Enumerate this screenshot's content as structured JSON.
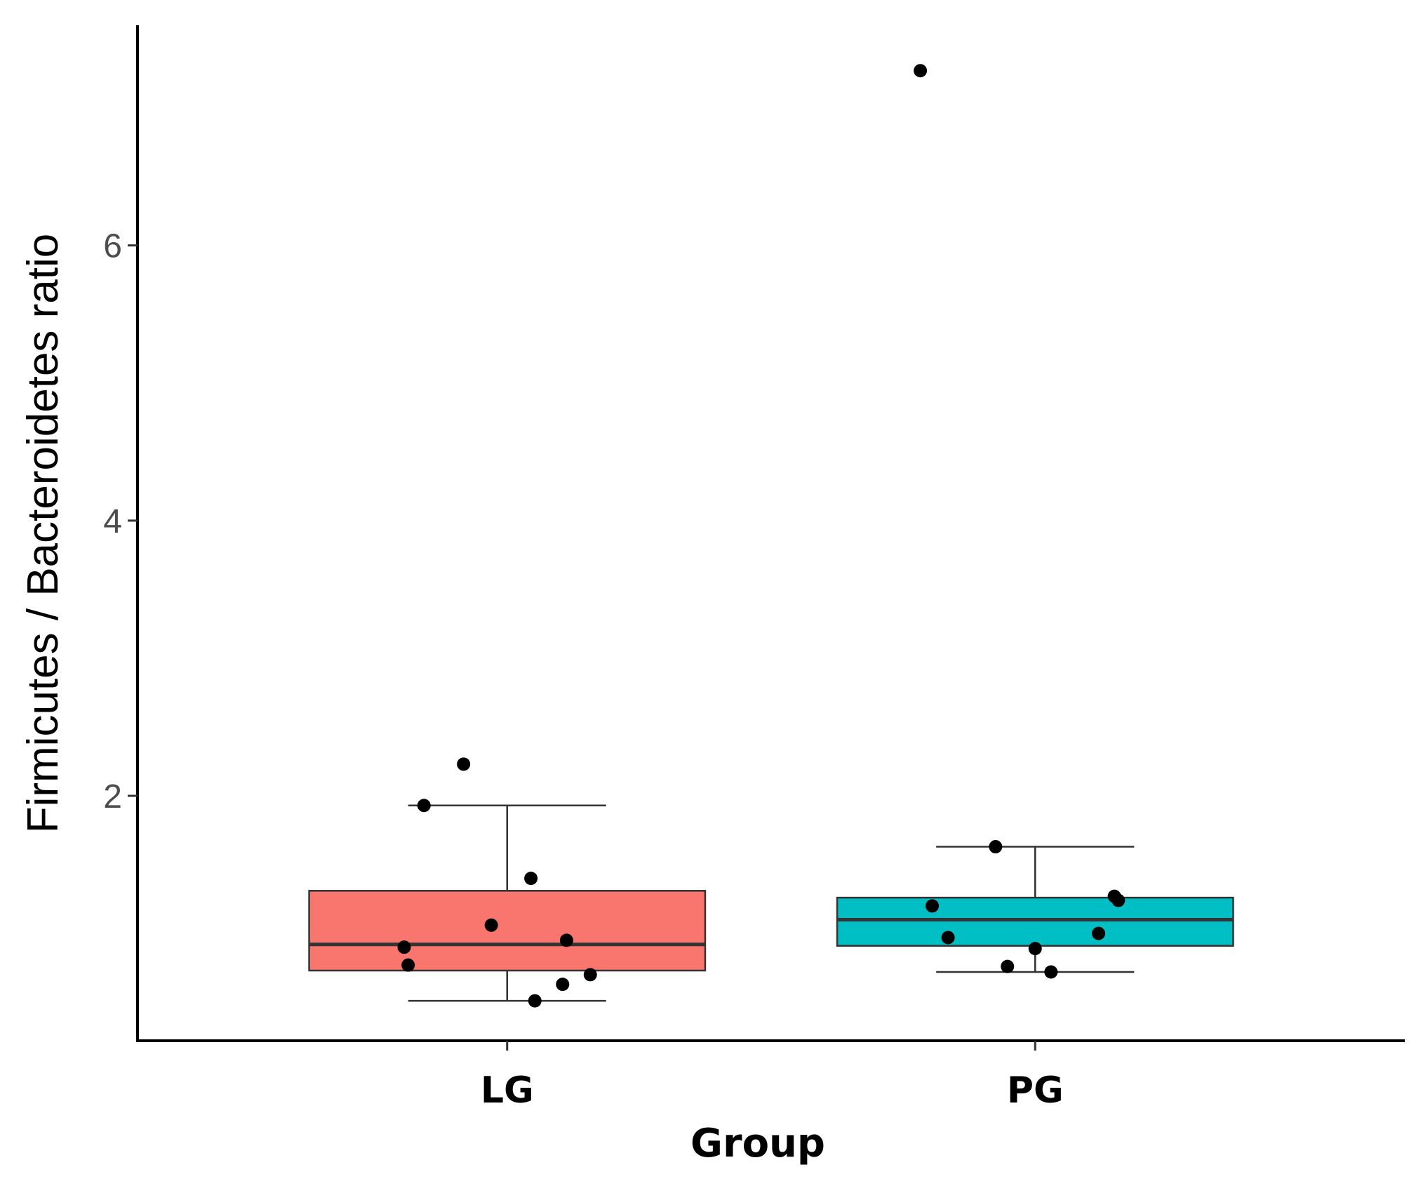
{
  "chart_data": {
    "type": "box",
    "title": "",
    "xlabel": "Group",
    "ylabel": "Firmicutes / Bacteroidetes ratio",
    "ylim": [
      0.22,
      7.6
    ],
    "yticks": [
      2,
      4,
      6
    ],
    "yticks_labels": [
      "2",
      "4",
      "6"
    ],
    "grid": false,
    "legend": "none",
    "categories": [
      "LG",
      "PG"
    ],
    "colors": {
      "LG": "#F8766D",
      "PG": "#00BFC4",
      "outline": "#333333",
      "points": "#000000",
      "axis": "#000000"
    },
    "boxes": [
      {
        "group": "LG",
        "whisker_low": 0.51,
        "q1": 0.73,
        "median": 0.92,
        "q3": 1.31,
        "whisker_high": 1.93,
        "points": [
          2.23,
          1.93,
          1.4,
          1.06,
          0.95,
          0.9,
          0.77,
          0.7,
          0.63,
          0.51
        ],
        "jitter": [
          -0.11,
          -0.21,
          0.06,
          -0.04,
          0.15,
          -0.26,
          -0.25,
          0.21,
          0.14,
          0.07
        ]
      },
      {
        "group": "PG",
        "whisker_low": 0.72,
        "q1": 0.91,
        "median": 1.1,
        "q3": 1.26,
        "whisker_high": 1.63,
        "points": [
          7.27,
          1.63,
          1.27,
          1.24,
          1.2,
          1.0,
          0.97,
          0.89,
          0.76,
          0.72
        ],
        "jitter": [
          -0.29,
          -0.1,
          0.2,
          0.21,
          -0.26,
          0.16,
          -0.22,
          0.0,
          -0.07,
          0.04
        ]
      }
    ]
  }
}
